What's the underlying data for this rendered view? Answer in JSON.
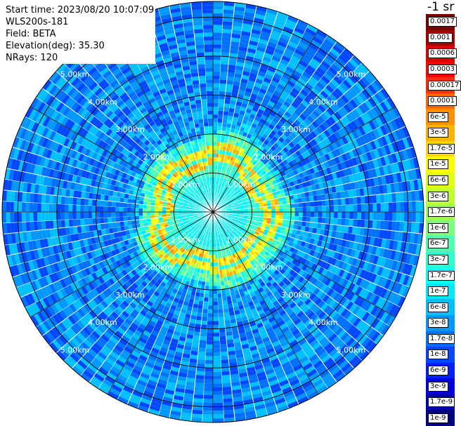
{
  "info": {
    "start_time": "Start time: 2023/08/20 10:07:09",
    "instrument": "WLS200s-181",
    "field": "Field: BETA",
    "elevation": "Elevation(deg): 35.30",
    "nrays": "NRays: 120"
  },
  "legend": {
    "unit": "-1 sr",
    "entries": [
      {
        "label": "0.0017",
        "color": "#7a0000"
      },
      {
        "label": "0.001",
        "color": "#a80000"
      },
      {
        "label": "0.0006",
        "color": "#d80000"
      },
      {
        "label": "0.0003",
        "color": "#ff0000"
      },
      {
        "label": "0.00017",
        "color": "#ff3000"
      },
      {
        "label": "0.0001",
        "color": "#ff6a00"
      },
      {
        "label": "6e-5",
        "color": "#ff9000"
      },
      {
        "label": "3e-5",
        "color": "#ffb400"
      },
      {
        "label": "1.7e-5",
        "color": "#ffd800"
      },
      {
        "label": "1e-5",
        "color": "#ffff00"
      },
      {
        "label": "6e-6",
        "color": "#e0ff10"
      },
      {
        "label": "3e-6",
        "color": "#c0ff30"
      },
      {
        "label": "1.7e-6",
        "color": "#a0ff50"
      },
      {
        "label": "1e-6",
        "color": "#80ff80"
      },
      {
        "label": "6e-7",
        "color": "#50ffb0"
      },
      {
        "label": "3e-7",
        "color": "#30ffd0"
      },
      {
        "label": "1.7e-7",
        "color": "#10ffef"
      },
      {
        "label": "1e-7",
        "color": "#00e8ff"
      },
      {
        "label": "6e-8",
        "color": "#00c0ff"
      },
      {
        "label": "3e-8",
        "color": "#0098ff"
      },
      {
        "label": "1.7e-8",
        "color": "#0070ff"
      },
      {
        "label": "1e-8",
        "color": "#0048ff"
      },
      {
        "label": "6e-9",
        "color": "#0020ff"
      },
      {
        "label": "3e-9",
        "color": "#0000e0"
      },
      {
        "label": "1.7e-9",
        "color": "#0000b0"
      },
      {
        "label": "1e-9",
        "color": "#000080"
      }
    ]
  },
  "map": {
    "range_rings": [
      {
        "label": "1.00km",
        "range_km": 1
      },
      {
        "label": "2.00km",
        "range_km": 2
      },
      {
        "label": "3.00km",
        "range_km": 3
      },
      {
        "label": "4.00km",
        "range_km": 4
      },
      {
        "label": "5.00km",
        "range_km": 5
      }
    ],
    "max_range_km": 5.4,
    "nrays": 120
  }
}
